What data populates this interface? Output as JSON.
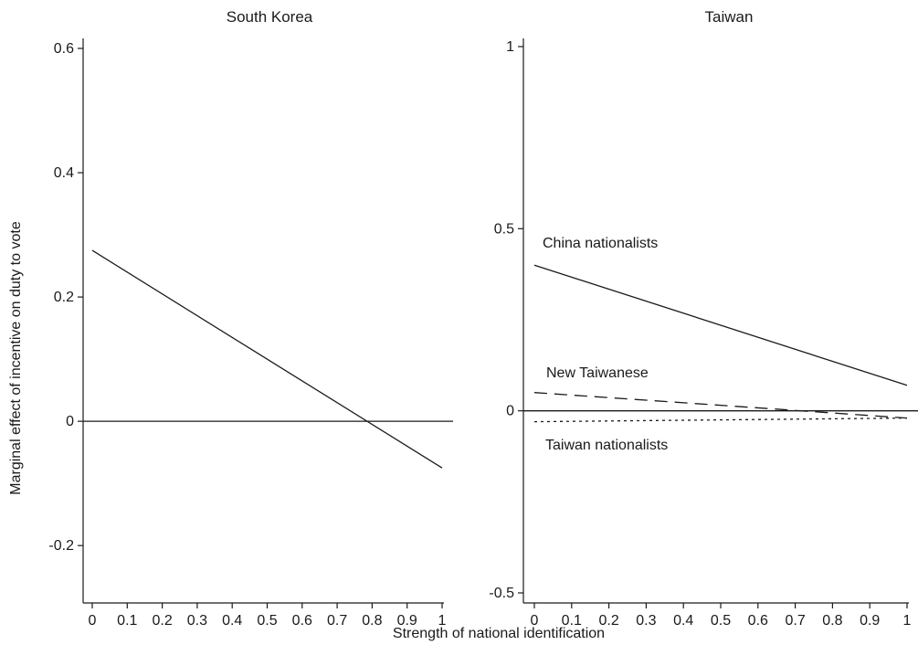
{
  "chart_data": [
    {
      "type": "line",
      "title": "South Korea",
      "xlabel": "Strength of national identification",
      "ylabel": "Marginal effect of incentive on duty to vote",
      "xlim": [
        0,
        1
      ],
      "ylim": [
        -0.3,
        0.6
      ],
      "x_ticks": [
        "0",
        "0.1",
        "0.2",
        "0.3",
        "0.4",
        "0.5",
        "0.6",
        "0.7",
        "0.8",
        "0.9",
        "1"
      ],
      "y_ticks": [
        "-0.2",
        "0",
        "0.2",
        "0.4",
        "0.6"
      ],
      "reference_line_y": 0,
      "grid": false,
      "series": [
        {
          "style": "solid",
          "x": [
            0,
            1
          ],
          "y": [
            0.275,
            -0.075
          ]
        }
      ]
    },
    {
      "type": "line",
      "title": "Taiwan",
      "xlabel": "Strength of national identification",
      "xlim": [
        0,
        1
      ],
      "ylim": [
        -0.5,
        1.0
      ],
      "x_ticks": [
        "0",
        "0.1",
        "0.2",
        "0.3",
        "0.4",
        "0.5",
        "0.6",
        "0.7",
        "0.8",
        "0.9",
        "1"
      ],
      "y_ticks": [
        "-0.5",
        "0",
        "0.5",
        "1"
      ],
      "reference_line_y": 0,
      "grid": false,
      "series": [
        {
          "name": "China nationalists",
          "style": "solid",
          "x": [
            0,
            1
          ],
          "y": [
            0.4,
            0.07
          ]
        },
        {
          "name": "New Taiwanese",
          "style": "dashed",
          "x": [
            0,
            1
          ],
          "y": [
            0.05,
            -0.02
          ]
        },
        {
          "name": "Taiwan nationalists",
          "style": "dotted",
          "x": [
            0,
            1
          ],
          "y": [
            -0.03,
            -0.02
          ]
        }
      ]
    }
  ]
}
